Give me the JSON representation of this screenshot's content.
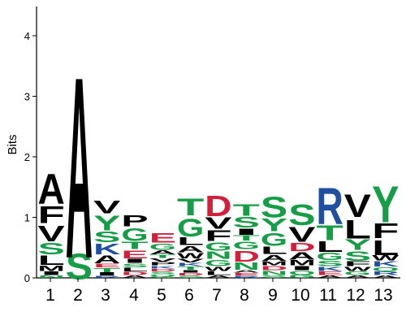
{
  "chart_data": {
    "type": "sequence-logo",
    "title": "",
    "xlabel": "",
    "ylabel": "Bits",
    "ylim": [
      0,
      4.55
    ],
    "yticks": [
      "0",
      "1",
      "2",
      "3",
      "4"
    ],
    "positions": [
      "1",
      "2",
      "3",
      "4",
      "5",
      "6",
      "7",
      "8",
      "9",
      "10",
      "11",
      "12",
      "13"
    ],
    "color_scheme": {
      "A": "#000000",
      "V": "#000000",
      "L": "#000000",
      "I": "#000000",
      "P": "#000000",
      "F": "#000000",
      "W": "#000000",
      "M": "#000000",
      "S": "#169e47",
      "T": "#169e47",
      "Y": "#169e47",
      "G": "#169e47",
      "C": "#169e47",
      "Q": "#169e47",
      "N": "#169e47",
      "K": "#1f4fa0",
      "R": "#1f4fa0",
      "H": "#1f4fa0",
      "D": "#d31f3a",
      "E": "#d31f3a"
    },
    "columns": [
      {
        "position": "1",
        "letters": [
          {
            "aa": "N",
            "height": 0.05
          },
          {
            "aa": "I",
            "height": 0.07
          },
          {
            "aa": "M",
            "height": 0.1
          },
          {
            "aa": "L",
            "height": 0.18
          },
          {
            "aa": "S",
            "height": 0.22
          },
          {
            "aa": "V",
            "height": 0.3
          },
          {
            "aa": "F",
            "height": 0.33
          },
          {
            "aa": "A",
            "height": 0.58
          }
        ]
      },
      {
        "position": "2",
        "letters": [
          {
            "aa": "S",
            "height": 0.5
          },
          {
            "aa": "A",
            "height": 3.5
          }
        ]
      },
      {
        "position": "3",
        "letters": [
          {
            "aa": "R",
            "height": 0.04
          },
          {
            "aa": "I",
            "height": 0.06
          },
          {
            "aa": "T",
            "height": 0.08
          },
          {
            "aa": "E",
            "height": 0.07
          },
          {
            "aa": "A",
            "height": 0.15
          },
          {
            "aa": "K",
            "height": 0.2
          },
          {
            "aa": "S",
            "height": 0.2
          },
          {
            "aa": "Y",
            "height": 0.28
          },
          {
            "aa": "V",
            "height": 0.24
          }
        ]
      },
      {
        "position": "4",
        "letters": [
          {
            "aa": "A",
            "height": 0.05
          },
          {
            "aa": "D",
            "height": 0.06
          },
          {
            "aa": "L",
            "height": 0.07
          },
          {
            "aa": "S",
            "height": 0.07
          },
          {
            "aa": "I",
            "height": 0.08
          },
          {
            "aa": "E",
            "height": 0.15
          },
          {
            "aa": "T",
            "height": 0.14
          },
          {
            "aa": "G",
            "height": 0.24
          },
          {
            "aa": "P",
            "height": 0.21
          }
        ]
      },
      {
        "position": "5",
        "letters": [
          {
            "aa": "C",
            "height": 0.03
          },
          {
            "aa": "Q",
            "height": 0.04
          },
          {
            "aa": "S",
            "height": 0.04
          },
          {
            "aa": "D",
            "height": 0.05
          },
          {
            "aa": "K",
            "height": 0.05
          },
          {
            "aa": "P",
            "height": 0.06
          },
          {
            "aa": "V",
            "height": 0.06
          },
          {
            "aa": "T",
            "height": 0.06
          },
          {
            "aa": "A",
            "height": 0.08
          },
          {
            "aa": "G",
            "height": 0.12
          },
          {
            "aa": "E",
            "height": 0.18
          }
        ]
      },
      {
        "position": "6",
        "letters": [
          {
            "aa": "S",
            "height": 0.04
          },
          {
            "aa": "D",
            "height": 0.05
          },
          {
            "aa": "I",
            "height": 0.05
          },
          {
            "aa": "T",
            "height": 0.06
          },
          {
            "aa": "K",
            "height": 0.06
          },
          {
            "aa": "V",
            "height": 0.07
          },
          {
            "aa": "W",
            "height": 0.1
          },
          {
            "aa": "A",
            "height": 0.12
          },
          {
            "aa": "L",
            "height": 0.15
          },
          {
            "aa": "G",
            "height": 0.35
          },
          {
            "aa": "T",
            "height": 0.32
          }
        ]
      },
      {
        "position": "7",
        "letters": [
          {
            "aa": "A",
            "height": 0.05
          },
          {
            "aa": "L",
            "height": 0.07
          },
          {
            "aa": "W",
            "height": 0.08
          },
          {
            "aa": "G",
            "height": 0.12
          },
          {
            "aa": "N",
            "height": 0.14
          },
          {
            "aa": "G",
            "height": 0.16
          },
          {
            "aa": "F",
            "height": 0.2
          },
          {
            "aa": "V",
            "height": 0.22
          },
          {
            "aa": "D",
            "height": 0.4
          }
        ]
      },
      {
        "position": "8",
        "letters": [
          {
            "aa": "R",
            "height": 0.04
          },
          {
            "aa": "E",
            "height": 0.05
          },
          {
            "aa": "A",
            "height": 0.05
          },
          {
            "aa": "N",
            "height": 0.14
          },
          {
            "aa": "D",
            "height": 0.2
          },
          {
            "aa": "G",
            "height": 0.14
          },
          {
            "aa": "T",
            "height": 0.1
          },
          {
            "aa": "I",
            "height": 0.12
          },
          {
            "aa": "S",
            "height": 0.2
          },
          {
            "aa": "T",
            "height": 0.22
          }
        ]
      },
      {
        "position": "9",
        "letters": [
          {
            "aa": "S",
            "height": 0.05
          },
          {
            "aa": "N",
            "height": 0.08
          },
          {
            "aa": "D",
            "height": 0.08
          },
          {
            "aa": "M",
            "height": 0.07
          },
          {
            "aa": "A",
            "height": 0.12
          },
          {
            "aa": "L",
            "height": 0.14
          },
          {
            "aa": "G",
            "height": 0.24
          },
          {
            "aa": "Y",
            "height": 0.24
          },
          {
            "aa": "S",
            "height": 0.4
          }
        ]
      },
      {
        "position": "10",
        "letters": [
          {
            "aa": "G",
            "height": 0.06
          },
          {
            "aa": "Q",
            "height": 0.07
          },
          {
            "aa": "I",
            "height": 0.08
          },
          {
            "aa": "M",
            "height": 0.1
          },
          {
            "aa": "A",
            "height": 0.14
          },
          {
            "aa": "D",
            "height": 0.16
          },
          {
            "aa": "V",
            "height": 0.28
          },
          {
            "aa": "S",
            "height": 0.4
          }
        ]
      },
      {
        "position": "11",
        "letters": [
          {
            "aa": "A",
            "height": 0.05
          },
          {
            "aa": "E",
            "height": 0.07
          },
          {
            "aa": "K",
            "height": 0.08
          },
          {
            "aa": "S",
            "height": 0.1
          },
          {
            "aa": "G",
            "height": 0.14
          },
          {
            "aa": "L",
            "height": 0.2
          },
          {
            "aa": "T",
            "height": 0.28
          },
          {
            "aa": "R",
            "height": 0.7
          }
        ]
      },
      {
        "position": "12",
        "letters": [
          {
            "aa": "A",
            "height": 0.05
          },
          {
            "aa": "G",
            "height": 0.07
          },
          {
            "aa": "W",
            "height": 0.08
          },
          {
            "aa": "F",
            "height": 0.09
          },
          {
            "aa": "S",
            "height": 0.18
          },
          {
            "aa": "Y",
            "height": 0.2
          },
          {
            "aa": "L",
            "height": 0.36
          },
          {
            "aa": "V",
            "height": 0.44
          }
        ]
      },
      {
        "position": "13",
        "letters": [
          {
            "aa": "A",
            "height": 0.05
          },
          {
            "aa": "R",
            "height": 0.07
          },
          {
            "aa": "Q",
            "height": 0.07
          },
          {
            "aa": "K",
            "height": 0.1
          },
          {
            "aa": "W",
            "height": 0.1
          },
          {
            "aa": "L",
            "height": 0.28
          },
          {
            "aa": "F",
            "height": 0.28
          },
          {
            "aa": "Y",
            "height": 0.7
          }
        ]
      }
    ]
  }
}
